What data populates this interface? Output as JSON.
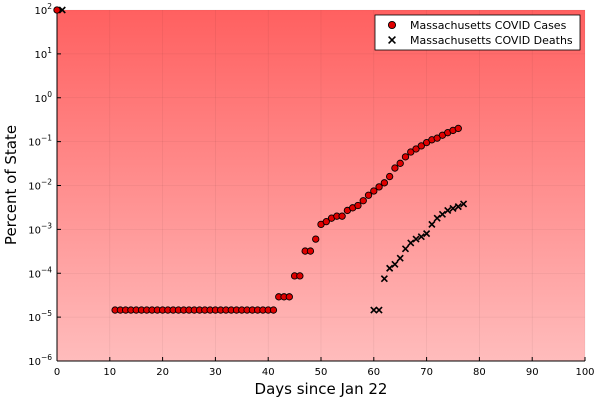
{
  "chart_data": {
    "type": "scatter",
    "title": "",
    "xlabel": "Days since Jan 22",
    "ylabel": "Percent of State",
    "xlim": [
      0,
      100
    ],
    "ylim_log10": [
      -6,
      2
    ],
    "y_scale": "log10",
    "grid": true,
    "legend_position": "top-right",
    "x_ticks": [
      0,
      10,
      20,
      30,
      40,
      50,
      60,
      70,
      80,
      90,
      100
    ],
    "y_tick_exponents": [
      -6,
      -5,
      -4,
      -3,
      -2,
      -1,
      0,
      1,
      2
    ],
    "background_gradient": {
      "top": "#ff6060",
      "bottom": "#ffbcbc"
    },
    "series": [
      {
        "name": "Massachusetts COVID Cases",
        "marker": "circle",
        "color": "#e00000",
        "points": [
          [
            0,
            100
          ],
          [
            11,
            1.45e-05
          ],
          [
            12,
            1.45e-05
          ],
          [
            13,
            1.45e-05
          ],
          [
            14,
            1.45e-05
          ],
          [
            15,
            1.45e-05
          ],
          [
            16,
            1.45e-05
          ],
          [
            17,
            1.45e-05
          ],
          [
            18,
            1.45e-05
          ],
          [
            19,
            1.45e-05
          ],
          [
            20,
            1.45e-05
          ],
          [
            21,
            1.45e-05
          ],
          [
            22,
            1.45e-05
          ],
          [
            23,
            1.45e-05
          ],
          [
            24,
            1.45e-05
          ],
          [
            25,
            1.45e-05
          ],
          [
            26,
            1.45e-05
          ],
          [
            27,
            1.45e-05
          ],
          [
            28,
            1.45e-05
          ],
          [
            29,
            1.45e-05
          ],
          [
            30,
            1.45e-05
          ],
          [
            31,
            1.45e-05
          ],
          [
            32,
            1.45e-05
          ],
          [
            33,
            1.45e-05
          ],
          [
            34,
            1.45e-05
          ],
          [
            35,
            1.45e-05
          ],
          [
            36,
            1.45e-05
          ],
          [
            37,
            1.45e-05
          ],
          [
            38,
            1.45e-05
          ],
          [
            39,
            1.45e-05
          ],
          [
            40,
            1.45e-05
          ],
          [
            41,
            1.45e-05
          ],
          [
            42,
            2.9e-05
          ],
          [
            43,
            2.9e-05
          ],
          [
            44,
            2.9e-05
          ],
          [
            45,
            8.7e-05
          ],
          [
            46,
            8.7e-05
          ],
          [
            47,
            0.00032
          ],
          [
            48,
            0.00032
          ],
          [
            49,
            0.0006
          ],
          [
            50,
            0.0013
          ],
          [
            51,
            0.0015
          ],
          [
            52,
            0.0018
          ],
          [
            53,
            0.002
          ],
          [
            54,
            0.002
          ],
          [
            55,
            0.0027
          ],
          [
            56,
            0.0031
          ],
          [
            57,
            0.0035
          ],
          [
            58,
            0.0045
          ],
          [
            59,
            0.006
          ],
          [
            60,
            0.0075
          ],
          [
            61,
            0.0093
          ],
          [
            62,
            0.0115
          ],
          [
            63,
            0.016
          ],
          [
            64,
            0.025
          ],
          [
            65,
            0.032
          ],
          [
            66,
            0.045
          ],
          [
            67,
            0.058
          ],
          [
            68,
            0.068
          ],
          [
            69,
            0.08
          ],
          [
            70,
            0.095
          ],
          [
            71,
            0.11
          ],
          [
            72,
            0.12
          ],
          [
            73,
            0.14
          ],
          [
            74,
            0.16
          ],
          [
            75,
            0.18
          ],
          [
            76,
            0.2
          ]
        ]
      },
      {
        "name": "Massachusetts COVID Deaths",
        "marker": "x",
        "color": "#000000",
        "points": [
          [
            1,
            100
          ],
          [
            60,
            1.45e-05
          ],
          [
            61,
            1.45e-05
          ],
          [
            62,
            7.5e-05
          ],
          [
            63,
            0.00013
          ],
          [
            64,
            0.00016
          ],
          [
            65,
            0.00022
          ],
          [
            66,
            0.00036
          ],
          [
            67,
            0.00049
          ],
          [
            68,
            0.0006
          ],
          [
            69,
            0.00068
          ],
          [
            70,
            0.0008
          ],
          [
            71,
            0.0013
          ],
          [
            72,
            0.0018
          ],
          [
            73,
            0.0022
          ],
          [
            74,
            0.0027
          ],
          [
            75,
            0.003
          ],
          [
            76,
            0.0033
          ],
          [
            77,
            0.0038
          ]
        ]
      }
    ]
  }
}
